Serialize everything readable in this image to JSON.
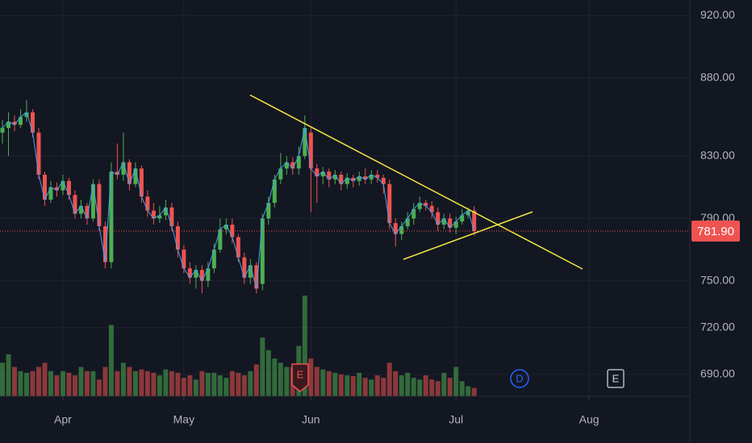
{
  "chart_data": {
    "type": "candlestick",
    "up_color": "#4caf50",
    "down_color": "#ef5350",
    "ma_color": "#42a5f5",
    "grid": true,
    "ylim": [
      676,
      930
    ],
    "yticks": [
      {
        "value": 690,
        "label": "690.00"
      },
      {
        "value": 720,
        "label": "720.00"
      },
      {
        "value": 750,
        "label": "750.00"
      },
      {
        "value": 790,
        "label": "790.00"
      },
      {
        "value": 830,
        "label": "830.00"
      },
      {
        "value": 880,
        "label": "880.00"
      },
      {
        "value": 920,
        "label": "920.00"
      }
    ],
    "xlim": [
      -0.4,
      114.6
    ],
    "xticks": [
      {
        "value": 10,
        "label": "Apr"
      },
      {
        "value": 30,
        "label": "May"
      },
      {
        "value": 51,
        "label": "Jun"
      },
      {
        "value": 75,
        "label": "Jul"
      },
      {
        "value": 97,
        "label": "Aug"
      }
    ],
    "open": [
      845,
      848,
      852,
      850,
      855,
      858,
      845,
      818,
      802,
      810,
      808,
      814,
      805,
      793,
      798,
      790,
      812,
      785,
      762,
      820,
      818,
      826,
      812,
      822,
      804,
      795,
      790,
      792,
      797,
      785,
      770,
      758,
      752,
      757,
      750,
      758,
      770,
      783,
      786,
      778,
      765,
      752,
      760,
      748,
      790,
      800,
      815,
      822,
      826,
      822,
      830,
      845,
      822,
      817,
      820,
      815,
      818,
      812,
      816,
      814,
      817,
      815,
      818,
      816,
      812,
      787,
      780,
      785,
      790,
      796,
      800,
      798,
      794,
      786,
      790,
      784,
      788,
      792,
      795
    ],
    "high": [
      853,
      858,
      856,
      860,
      866,
      860,
      848,
      820,
      814,
      813,
      818,
      816,
      808,
      802,
      800,
      815,
      815,
      788,
      826,
      838,
      845,
      828,
      826,
      824,
      808,
      800,
      798,
      802,
      800,
      788,
      773,
      762,
      760,
      760,
      762,
      774,
      790,
      790,
      790,
      780,
      768,
      764,
      762,
      793,
      804,
      818,
      832,
      830,
      829,
      836,
      856,
      848,
      825,
      823,
      822,
      821,
      820,
      819,
      818,
      820,
      822,
      821,
      821,
      818,
      815,
      790,
      788,
      794,
      800,
      804,
      802,
      801,
      797,
      793,
      793,
      791,
      796,
      797,
      798
    ],
    "low": [
      838,
      830,
      846,
      848,
      852,
      842,
      815,
      798,
      800,
      804,
      805,
      802,
      790,
      790,
      786,
      788,
      782,
      758,
      758,
      815,
      814,
      808,
      810,
      800,
      791,
      786,
      787,
      789,
      782,
      765,
      755,
      748,
      745,
      742,
      746,
      755,
      768,
      780,
      774,
      762,
      748,
      748,
      742,
      744,
      786,
      797,
      812,
      818,
      818,
      818,
      828,
      794,
      800,
      812,
      810,
      812,
      808,
      809,
      810,
      811,
      812,
      812,
      813,
      806,
      783,
      772,
      776,
      783,
      786,
      794,
      795,
      790,
      782,
      783,
      781,
      780,
      786,
      790,
      779
    ],
    "close": [
      848,
      852,
      850,
      855,
      858,
      845,
      818,
      802,
      810,
      808,
      814,
      805,
      793,
      798,
      790,
      812,
      785,
      762,
      820,
      818,
      826,
      812,
      822,
      804,
      795,
      790,
      792,
      797,
      785,
      770,
      758,
      752,
      757,
      750,
      758,
      770,
      783,
      786,
      778,
      765,
      752,
      760,
      745,
      790,
      800,
      815,
      822,
      826,
      822,
      830,
      848,
      822,
      817,
      820,
      815,
      818,
      812,
      816,
      814,
      817,
      815,
      818,
      816,
      812,
      787,
      780,
      785,
      790,
      796,
      800,
      798,
      794,
      786,
      790,
      784,
      788,
      792,
      795,
      781.9
    ],
    "volume": [
      40,
      50,
      35,
      30,
      28,
      30,
      35,
      40,
      30,
      25,
      30,
      28,
      25,
      35,
      30,
      30,
      20,
      35,
      85,
      30,
      40,
      35,
      30,
      32,
      30,
      28,
      25,
      32,
      30,
      28,
      22,
      25,
      20,
      30,
      28,
      28,
      25,
      22,
      30,
      28,
      25,
      30,
      38,
      70,
      55,
      45,
      40,
      35,
      35,
      60,
      120,
      45,
      35,
      32,
      30,
      28,
      26,
      25,
      24,
      28,
      22,
      20,
      25,
      22,
      40,
      30,
      25,
      28,
      22,
      20,
      25,
      20,
      18,
      28,
      22,
      35,
      18,
      12,
      10
    ],
    "last_price": {
      "value": 781.9,
      "label": "781.90"
    },
    "events": [
      "E",
      "D",
      "E"
    ]
  }
}
